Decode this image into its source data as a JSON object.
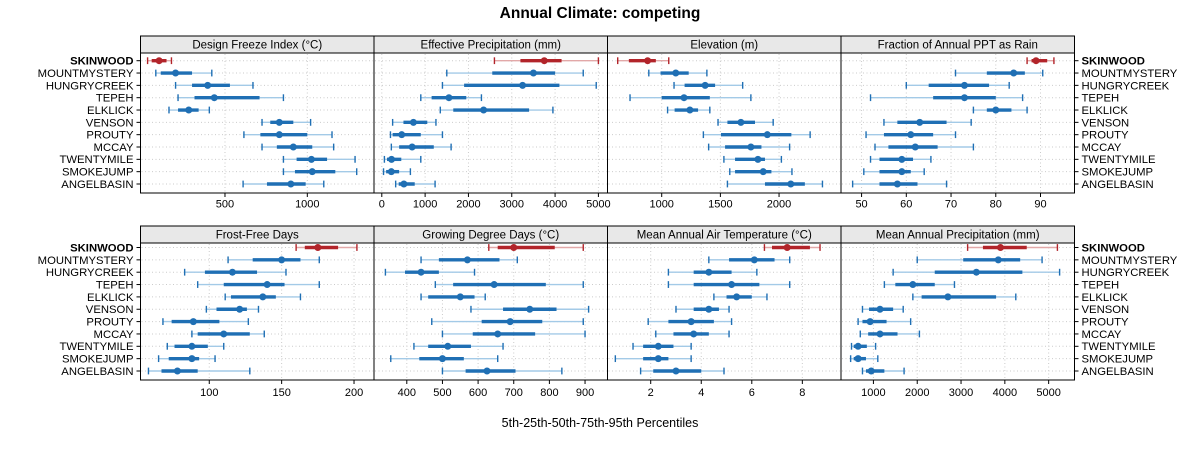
{
  "title": "Annual Climate: competing",
  "caption": "5th-25th-50th-75th-95th Percentiles",
  "highlighted_station": "SKINWOOD",
  "stations": [
    "SKINWOOD",
    "MOUNTMYSTERY",
    "HUNGRYCREEK",
    "TEPEH",
    "ELKLICK",
    "VENSON",
    "PROUTY",
    "MCCAY",
    "TWENTYMILE",
    "SMOKEJUMP",
    "ANGELBASIN"
  ],
  "colors": {
    "highlight_main": "#B2242A",
    "highlight_light": "#E2A8A8",
    "series_main": "#1F6FB4",
    "series_light": "#A3CAE7",
    "strip_bg": "#E8E8E8",
    "grid": "#CBCBCB",
    "border": "#000000",
    "text": "#000000"
  },
  "chart_data": {
    "type": "scatter",
    "subtype": "trellis-percentile-dotplot",
    "panel_arrangement": "2 rows x 4 cols",
    "grid": "dotted",
    "legend": "none",
    "percentiles": [
      "5th",
      "25th",
      "50th",
      "75th",
      "95th"
    ],
    "rows_order": "stations listed top-to-bottom in each panel",
    "panels": [
      {
        "label": "Design Freeze Index (°C)",
        "ticks": [
          500,
          1000
        ],
        "xlim": [
          -13,
          1405
        ],
        "values": [
          [
            30,
            55,
            100,
            145,
            175
          ],
          [
            80,
            110,
            200,
            300,
            420
          ],
          [
            200,
            300,
            395,
            530,
            670
          ],
          [
            215,
            315,
            435,
            710,
            855
          ],
          [
            160,
            215,
            280,
            340,
            405
          ],
          [
            725,
            775,
            830,
            915,
            1020
          ],
          [
            615,
            715,
            830,
            1000,
            1150
          ],
          [
            725,
            815,
            915,
            1030,
            1160
          ],
          [
            855,
            935,
            1025,
            1120,
            1290
          ],
          [
            855,
            925,
            1030,
            1170,
            1300
          ],
          [
            610,
            755,
            900,
            990,
            1100
          ]
        ]
      },
      {
        "label": "Effective Precipitation (mm)",
        "ticks": [
          0,
          1000,
          2000,
          3000,
          4000,
          5000
        ],
        "xlim": [
          -180,
          5210
        ],
        "values": [
          [
            2600,
            3200,
            3750,
            4150,
            5000
          ],
          [
            1500,
            2550,
            3500,
            4000,
            4650
          ],
          [
            1400,
            1900,
            3250,
            4100,
            4950
          ],
          [
            900,
            1150,
            1550,
            1950,
            2300
          ],
          [
            1350,
            1650,
            2350,
            3400,
            3950
          ],
          [
            250,
            500,
            730,
            1050,
            1250
          ],
          [
            200,
            250,
            460,
            900,
            1400
          ],
          [
            220,
            400,
            700,
            1200,
            1600
          ],
          [
            60,
            120,
            225,
            450,
            900
          ],
          [
            40,
            100,
            220,
            400,
            660
          ],
          [
            320,
            390,
            510,
            760,
            1230
          ]
        ]
      },
      {
        "label": "Elevation (m)",
        "ticks": [
          1000,
          1500,
          2000
        ],
        "xlim": [
          538,
          2528
        ],
        "values": [
          [
            625,
            720,
            880,
            950,
            1060
          ],
          [
            890,
            990,
            1120,
            1230,
            1385
          ],
          [
            1105,
            1195,
            1370,
            1455,
            1690
          ],
          [
            730,
            1000,
            1190,
            1410,
            1760
          ],
          [
            1050,
            1110,
            1240,
            1310,
            1410
          ],
          [
            1480,
            1560,
            1675,
            1795,
            1950
          ],
          [
            1355,
            1505,
            1900,
            2105,
            2265
          ],
          [
            1400,
            1540,
            1760,
            1850,
            2090
          ],
          [
            1530,
            1625,
            1820,
            1880,
            2020
          ],
          [
            1580,
            1625,
            1865,
            1935,
            2110
          ],
          [
            1560,
            1880,
            2100,
            2220,
            2370
          ]
        ]
      },
      {
        "label": "Fraction of Annual PPT as Rain",
        "ticks": [
          50,
          60,
          70,
          80,
          90
        ],
        "xlim": [
          45.4,
          97.6
        ],
        "values": [
          [
            87,
            88,
            89,
            91.5,
            93
          ],
          [
            71,
            78,
            84,
            86.5,
            90.5
          ],
          [
            60,
            65,
            73,
            78.5,
            83
          ],
          [
            52,
            66,
            73,
            80,
            86
          ],
          [
            75,
            78,
            80,
            83.5,
            87
          ],
          [
            55,
            58,
            63,
            69,
            74.5
          ],
          [
            51,
            55,
            61,
            66,
            71
          ],
          [
            53,
            56,
            62,
            67,
            75
          ],
          [
            52,
            54,
            59,
            61.5,
            65.5
          ],
          [
            50.5,
            54,
            59,
            61,
            64
          ],
          [
            48,
            54,
            58,
            62.5,
            69
          ]
        ]
      },
      {
        "label": "Frost-Free Days",
        "ticks": [
          100,
          150,
          200
        ],
        "xlim": [
          52.5,
          213.8
        ],
        "values": [
          [
            160,
            166,
            175,
            189,
            202
          ],
          [
            113,
            130,
            150,
            163,
            176
          ],
          [
            83,
            97,
            116,
            133,
            153
          ],
          [
            92,
            110,
            140,
            152,
            176
          ],
          [
            111,
            115,
            137,
            146,
            163
          ],
          [
            98,
            105,
            121,
            126,
            134
          ],
          [
            68,
            74,
            89,
            107,
            127
          ],
          [
            88,
            92,
            110,
            128,
            138
          ],
          [
            71,
            76,
            88,
            99,
            110
          ],
          [
            65,
            72,
            88,
            93,
            104
          ],
          [
            58,
            67,
            78,
            92,
            128
          ]
        ]
      },
      {
        "label": "Growing Degree Days (°C)",
        "ticks": [
          400,
          500,
          600,
          700,
          800,
          900
        ],
        "xlim": [
          308,
          963
        ],
        "values": [
          [
            630,
            655,
            700,
            815,
            895
          ],
          [
            440,
            490,
            570,
            660,
            710
          ],
          [
            340,
            395,
            440,
            490,
            590
          ],
          [
            480,
            530,
            645,
            790,
            895
          ],
          [
            440,
            460,
            550,
            590,
            620
          ],
          [
            580,
            670,
            745,
            820,
            910
          ],
          [
            470,
            610,
            690,
            780,
            895
          ],
          [
            500,
            585,
            655,
            760,
            900
          ],
          [
            420,
            460,
            515,
            580,
            670
          ],
          [
            355,
            435,
            500,
            560,
            655
          ],
          [
            500,
            565,
            625,
            705,
            835
          ]
        ]
      },
      {
        "label": "Mean Annual Air Temperature (°C)",
        "ticks": [
          2,
          4,
          6,
          8
        ],
        "xlim": [
          0.29,
          9.53
        ],
        "values": [
          [
            6.5,
            6.8,
            7.4,
            8.3,
            8.7
          ],
          [
            4.3,
            5.1,
            6.1,
            6.9,
            7.5
          ],
          [
            2.7,
            3.7,
            4.3,
            5.2,
            6.2
          ],
          [
            2.7,
            3.7,
            5.2,
            6.3,
            7.5
          ],
          [
            4.5,
            5.0,
            5.4,
            6.0,
            6.6
          ],
          [
            3.0,
            3.7,
            4.3,
            4.7,
            5.1
          ],
          [
            1.9,
            2.7,
            3.6,
            4.5,
            5.2
          ],
          [
            2.2,
            2.9,
            3.7,
            4.3,
            5.1
          ],
          [
            1.3,
            1.7,
            2.3,
            2.9,
            3.6
          ],
          [
            0.6,
            1.7,
            2.3,
            2.7,
            3.6
          ],
          [
            1.6,
            2.1,
            3.0,
            4.0,
            4.9
          ]
        ]
      },
      {
        "label": "Mean Annual Precipitation (mm)",
        "ticks": [
          1000,
          2000,
          3000,
          4000,
          5000
        ],
        "xlim": [
          260,
          5590
        ],
        "values": [
          [
            3150,
            3500,
            3900,
            4500,
            5200
          ],
          [
            2000,
            3050,
            3850,
            4350,
            4850
          ],
          [
            1450,
            2400,
            3350,
            4400,
            5250
          ],
          [
            1250,
            1500,
            1900,
            2400,
            2850
          ],
          [
            1900,
            2100,
            2700,
            3800,
            4250
          ],
          [
            750,
            900,
            1150,
            1450,
            1680
          ],
          [
            650,
            750,
            925,
            1300,
            1850
          ],
          [
            700,
            880,
            1150,
            1550,
            2050
          ],
          [
            500,
            550,
            650,
            850,
            1050
          ],
          [
            480,
            550,
            650,
            830,
            1100
          ],
          [
            750,
            830,
            950,
            1250,
            1700
          ]
        ]
      }
    ]
  }
}
